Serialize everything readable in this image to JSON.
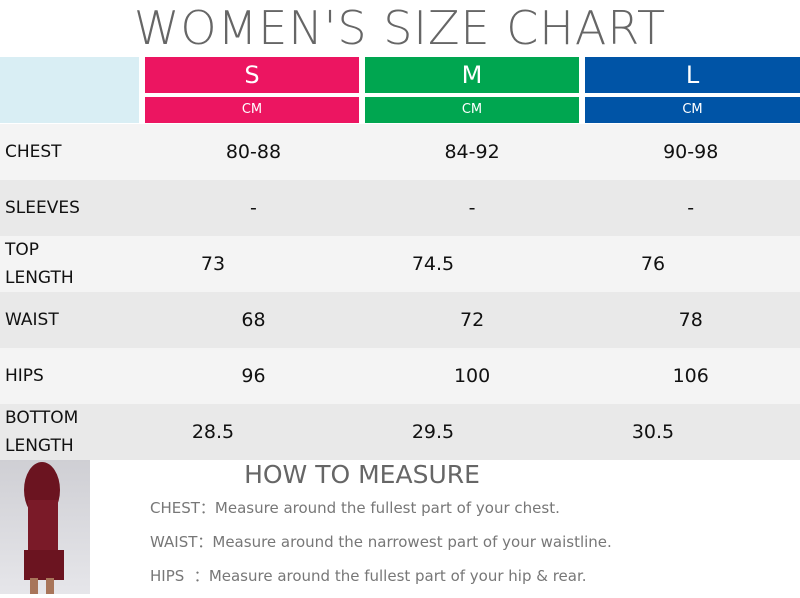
{
  "title": "WOMEN'S SIZE CHART",
  "sizes": [
    {
      "label": "S",
      "unit": "CM",
      "color": "#ec1561"
    },
    {
      "label": "M",
      "unit": "CM",
      "color": "#00a650"
    },
    {
      "label": "L",
      "unit": "CM",
      "color": "#0054a6"
    }
  ],
  "rows": [
    {
      "label": "CHEST",
      "values": [
        "80-88",
        "84-92",
        "90-98"
      ]
    },
    {
      "label": "SLEEVES",
      "values": [
        "-",
        "-",
        "-"
      ]
    },
    {
      "label": "TOP LENGTH",
      "values": [
        "73",
        "74.5",
        "76"
      ]
    },
    {
      "label": "WAIST",
      "values": [
        "68",
        "72",
        "78"
      ]
    },
    {
      "label": "HIPS",
      "values": [
        "96",
        "100",
        "106"
      ]
    },
    {
      "label": "BOTTOM LENGTH",
      "values": [
        "28.5",
        "29.5",
        "30.5"
      ]
    }
  ],
  "how_to_measure": {
    "title": "HOW TO MEASURE",
    "items": [
      {
        "label": "CHEST：",
        "text": "Measure around the fullest part of your chest."
      },
      {
        "label": "WAIST：",
        "text": "Measure around the narrowest part of your waistline."
      },
      {
        "label": "HIPS  ：",
        "text": "Measure around the fullest part of your hip & rear."
      }
    ]
  }
}
